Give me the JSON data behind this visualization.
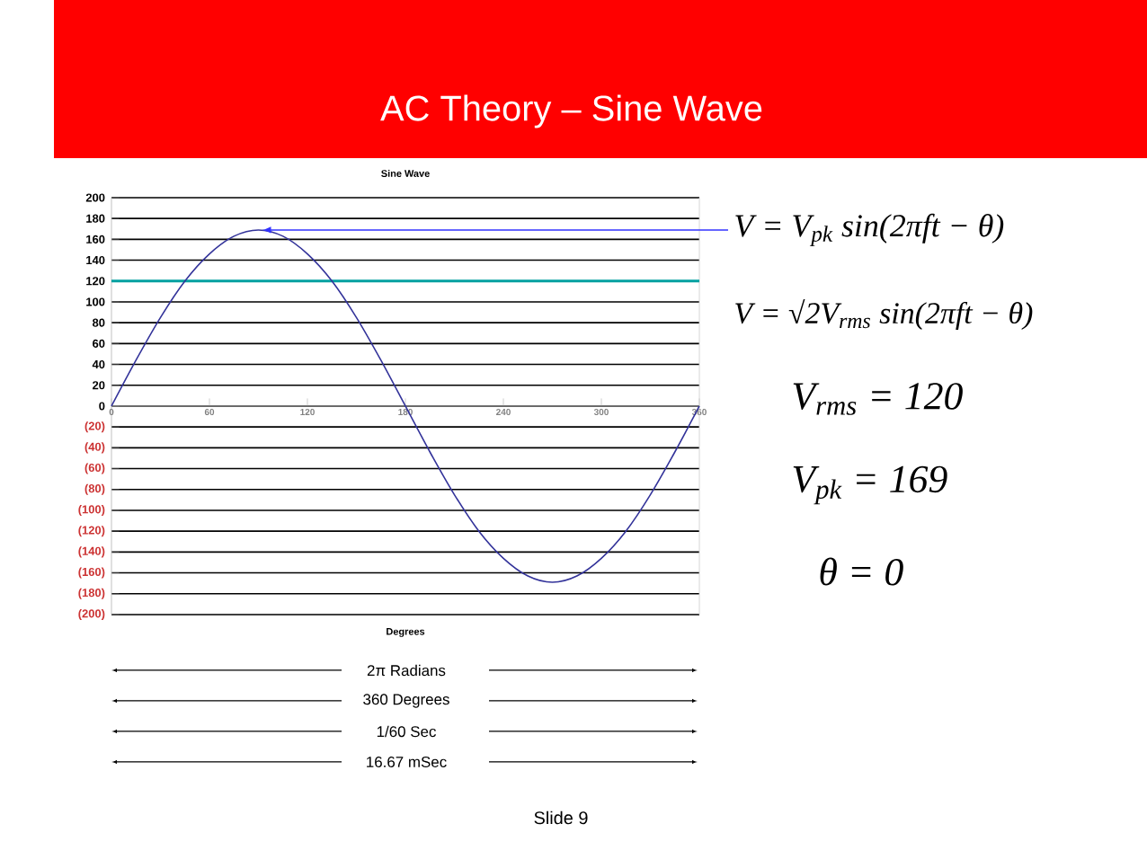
{
  "chart_data": {
    "type": "line",
    "title": "AC Theory – Sine Wave",
    "subtitle": "Sine Wave",
    "xlabel": "Degrees",
    "x": [
      0,
      15,
      30,
      45,
      60,
      75,
      90,
      105,
      120,
      135,
      150,
      165,
      180,
      195,
      210,
      225,
      240,
      255,
      270,
      285,
      300,
      315,
      330,
      345,
      360
    ],
    "series": [
      {
        "color": "#33339a",
        "values": [
          0,
          44,
          85,
          120,
          146,
          163,
          169,
          163,
          146,
          120,
          85,
          44,
          0,
          -44,
          -85,
          -120,
          -146,
          -163,
          -169,
          -163,
          -146,
          -120,
          -85,
          -44,
          0
        ]
      }
    ],
    "xlim": [
      0,
      360
    ],
    "xticks": [
      0,
      60,
      120,
      180,
      240,
      300,
      360
    ],
    "ylim": [
      -200,
      200
    ],
    "yticks": [
      {
        "value": -200,
        "label": "(200)"
      },
      {
        "value": -180,
        "label": "(180)"
      },
      {
        "value": -160,
        "label": "(160)"
      },
      {
        "value": -140,
        "label": "(140)"
      },
      {
        "value": -120,
        "label": "(120)"
      },
      {
        "value": -100,
        "label": "(100)"
      },
      {
        "value": -80,
        "label": "(80)"
      },
      {
        "value": -60,
        "label": "(60)"
      },
      {
        "value": -40,
        "label": "(40)"
      },
      {
        "value": -20,
        "label": "(20)"
      },
      0,
      20,
      40,
      60,
      80,
      100,
      120,
      140,
      160,
      180,
      200
    ],
    "grid": "y",
    "marker": "none",
    "line_style": "solid",
    "ref_lines": [
      {
        "axis": "y",
        "value": 120,
        "color": "#00a0a0"
      }
    ],
    "annotations": [
      {
        "text": "V = V$_{pk}$ sin(2πft − θ)",
        "x": 90,
        "y": 169
      },
      "V = √2V$_{rms}$ sin(2πft − θ)",
      "V$_{rms}$ = 120",
      "V$_{pk}$ = 169",
      "θ = 0",
      "2π Radians",
      "360 Degrees",
      "1/60 Sec",
      "16.67 mSec",
      "Slide 9"
    ]
  }
}
